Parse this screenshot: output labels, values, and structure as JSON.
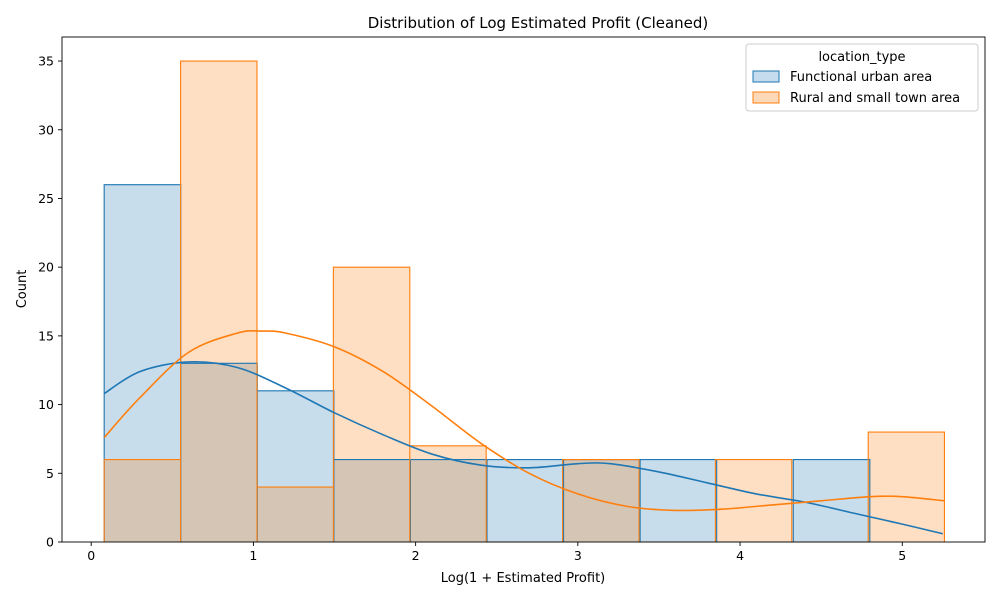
{
  "chart_data": {
    "type": "histogram",
    "title": "Distribution of Log Estimated Profit (Cleaned)",
    "xlabel": "Log(1 + Estimated Profit)",
    "ylabel": "Count",
    "xlim": [
      -0.18,
      5.51
    ],
    "ylim": [
      0,
      36.75
    ],
    "xticks": [
      0,
      1,
      2,
      3,
      4,
      5
    ],
    "yticks": [
      0,
      5,
      10,
      15,
      20,
      25,
      30,
      35
    ],
    "legend": {
      "title": "location_type",
      "placement": "top-right"
    },
    "series": [
      {
        "name": "Functional urban area",
        "color": "#1f77b4",
        "fill": "#c5dbee",
        "bin_edges": [
          0.08,
          0.552,
          1.024,
          1.496,
          1.968,
          2.44,
          2.912,
          3.384,
          3.856,
          4.328,
          4.8
        ],
        "counts": [
          26,
          13,
          11,
          6,
          6,
          6,
          6,
          6,
          0,
          6
        ],
        "kde_x": [
          0.08,
          0.3,
          0.6,
          0.9,
          1.2,
          1.5,
          1.8,
          2.1,
          2.4,
          2.7,
          3.0,
          3.2,
          3.5,
          3.8,
          4.1,
          4.4,
          4.7,
          5.0,
          5.25
        ],
        "kde_y": [
          10.8,
          12.4,
          13.1,
          12.7,
          11.2,
          9.4,
          7.8,
          6.4,
          5.6,
          5.4,
          5.7,
          5.7,
          5.1,
          4.3,
          3.5,
          2.9,
          2.1,
          1.3,
          0.6
        ]
      },
      {
        "name": "Rural and small town area",
        "color": "#ff7f0e",
        "fill": "#fdd8b9",
        "bin_edges": [
          0.08,
          0.551,
          1.022,
          1.493,
          1.964,
          2.435,
          2.906,
          3.377,
          3.848,
          4.319,
          4.79,
          5.26
        ],
        "counts": [
          6,
          35,
          4,
          20,
          7,
          0,
          6,
          0,
          6,
          0,
          8
        ],
        "kde_x": [
          0.08,
          0.3,
          0.6,
          0.9,
          1.05,
          1.2,
          1.5,
          1.8,
          2.1,
          2.4,
          2.7,
          3.0,
          3.3,
          3.6,
          3.9,
          4.2,
          4.5,
          4.8,
          5.0,
          5.26
        ],
        "kde_y": [
          7.6,
          10.5,
          13.8,
          15.2,
          15.35,
          15.2,
          14.2,
          12.4,
          9.9,
          7.2,
          5.0,
          3.5,
          2.6,
          2.3,
          2.4,
          2.7,
          3.0,
          3.3,
          3.3,
          3.0
        ]
      }
    ]
  }
}
